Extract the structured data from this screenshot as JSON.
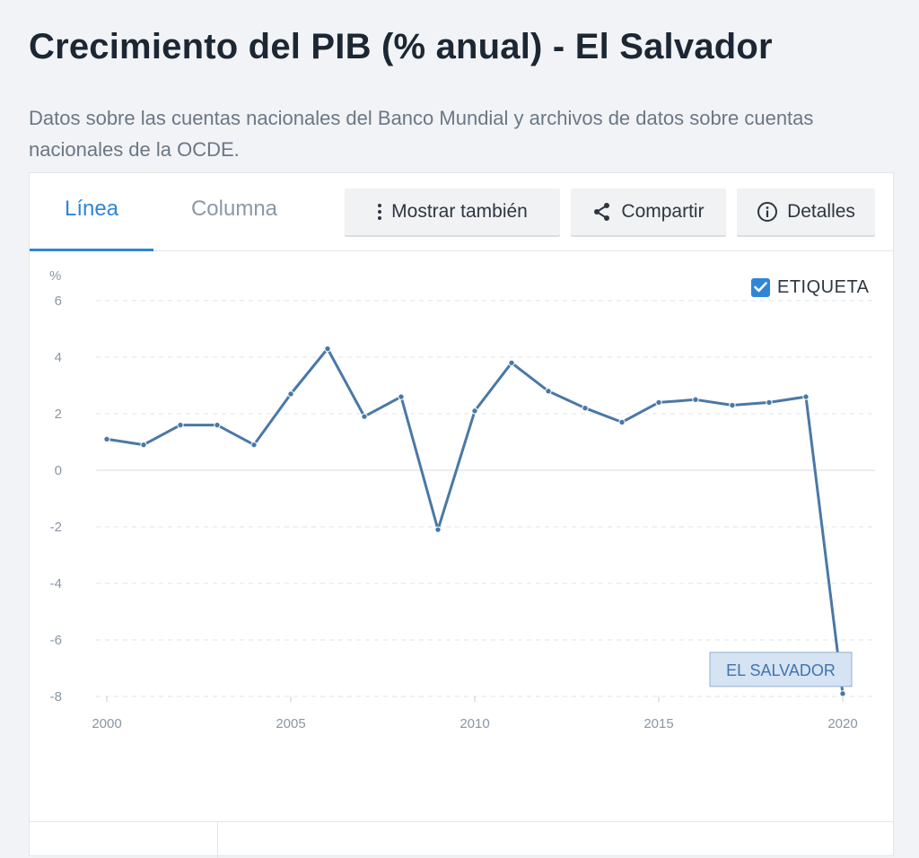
{
  "header": {
    "title": "Crecimiento del PIB (% anual) - El Salvador",
    "subtitle": "Datos sobre las cuentas nacionales del Banco Mundial y archivos de datos sobre cuentas nacionales de la OCDE."
  },
  "tabs": [
    {
      "label": "Línea",
      "active": true
    },
    {
      "label": "Columna",
      "active": false
    }
  ],
  "toolbar": {
    "show_also_label": "Mostrar también",
    "share_label": "Compartir",
    "details_label": "Detalles"
  },
  "label_toggle": {
    "label": "ETIQUETA",
    "checked": true
  },
  "colors": {
    "accent": "#2f86d6",
    "series": "#4a78a6"
  },
  "chart_data": {
    "type": "line",
    "ylabel": "%",
    "xlabel": "",
    "ylim": [
      -8,
      6
    ],
    "yticks": [
      6,
      4,
      2,
      0,
      -2,
      -4,
      -6,
      -8
    ],
    "xlim": [
      2000,
      2020
    ],
    "xticks": [
      2000,
      2005,
      2010,
      2015,
      2020
    ],
    "grid": true,
    "series": [
      {
        "name": "EL SALVADOR",
        "x": [
          2000,
          2001,
          2002,
          2003,
          2004,
          2005,
          2006,
          2007,
          2008,
          2009,
          2010,
          2011,
          2012,
          2013,
          2014,
          2015,
          2016,
          2017,
          2018,
          2019,
          2020
        ],
        "values": [
          1.1,
          0.9,
          1.6,
          1.6,
          0.9,
          2.7,
          4.3,
          1.9,
          2.6,
          -2.1,
          2.1,
          3.8,
          2.8,
          2.2,
          1.7,
          2.4,
          2.5,
          2.3,
          2.4,
          2.6,
          -7.9
        ]
      }
    ]
  }
}
